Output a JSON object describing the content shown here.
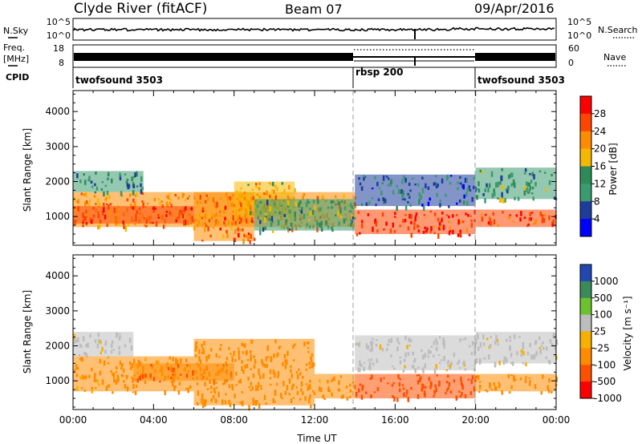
{
  "header": {
    "station": "Clyde River (fitACF)",
    "beam": "Beam 07",
    "date": "09/Apr/2016"
  },
  "panels": {
    "nsky": {
      "label": "N.Sky",
      "left_ticks": [
        "10^5",
        "10^0"
      ],
      "right_ticks": [
        "10^5",
        "10^0"
      ],
      "right_label": "N.Search"
    },
    "freq": {
      "label_line1": "Freq.",
      "label_line2": "[MHz]",
      "left_ticks": [
        "18",
        "8"
      ],
      "right_ticks": [
        "60",
        "0"
      ],
      "right_label": "Nave"
    },
    "cpid": {
      "label": "CPID",
      "segments": [
        {
          "name": "twofsound 3503",
          "start_h": 0,
          "end_h": 14
        },
        {
          "name": "rbsp 200",
          "start_h": 14,
          "end_h": 20
        },
        {
          "name": "twofsound 3503",
          "start_h": 20,
          "end_h": 24
        }
      ]
    }
  },
  "power_colorbar": {
    "label": "Power [dB]",
    "ticks": [
      "28",
      "24",
      "20",
      "16",
      "12",
      "8",
      "4"
    ],
    "colors": [
      "#ff0000",
      "#ff4500",
      "#ff8c00",
      "#f5b800",
      "#2e8b57",
      "#3c9a70",
      "#1c3d9a",
      "#0000ff"
    ]
  },
  "velocity_colorbar": {
    "label": "Velocity [m s⁻¹]",
    "ticks": [
      "1000",
      "500",
      "100",
      "25",
      "-25",
      "-100",
      "-500",
      "-1000"
    ],
    "colors": [
      "#2347b0",
      "#3a8a5a",
      "#6cc22e",
      "#bdbdbd",
      "#f5b000",
      "#ff8c00",
      "#ff5000",
      "#ff0000"
    ]
  },
  "axes": {
    "ylabel": "Slant Range [km]",
    "xlabel": "Time UT"
  },
  "chart_data": [
    {
      "type": "heatmap",
      "title": "",
      "quantity": "Power [dB]",
      "x_unit": "hours UT",
      "x_range": [
        0,
        24
      ],
      "x_ticks": [
        "00:00",
        "04:00",
        "08:00",
        "12:00",
        "16:00",
        "20:00",
        "00:00"
      ],
      "ylabel": "Slant Range [km]",
      "y_range": [
        180,
        4600
      ],
      "y_ticks": [
        1000,
        2000,
        3000,
        4000
      ],
      "color_range": [
        0,
        32
      ],
      "mode_boundaries_h": [
        14,
        20
      ],
      "regions": [
        {
          "x": [
            0,
            14
          ],
          "y": [
            700,
            1700
          ],
          "value": 22
        },
        {
          "x": [
            0,
            3.5
          ],
          "y": [
            1700,
            2300
          ],
          "value": 10
        },
        {
          "x": [
            0,
            6
          ],
          "y": [
            800,
            1300
          ],
          "value": 26
        },
        {
          "x": [
            6,
            9
          ],
          "y": [
            300,
            1700
          ],
          "value": 24
        },
        {
          "x": [
            8,
            11
          ],
          "y": [
            1000,
            2000
          ],
          "value": 20
        },
        {
          "x": [
            9,
            14
          ],
          "y": [
            600,
            1500
          ],
          "value": 12
        },
        {
          "x": [
            14,
            20
          ],
          "y": [
            500,
            1200
          ],
          "value": 28
        },
        {
          "x": [
            14,
            20
          ],
          "y": [
            1300,
            2200
          ],
          "value": 8
        },
        {
          "x": [
            20,
            24
          ],
          "y": [
            700,
            1200
          ],
          "value": 26
        },
        {
          "x": [
            20,
            24
          ],
          "y": [
            1500,
            2400
          ],
          "value": 12
        }
      ]
    },
    {
      "type": "heatmap",
      "title": "",
      "quantity": "Velocity [m s⁻¹]",
      "x_unit": "hours UT",
      "x_range": [
        0,
        24
      ],
      "x_ticks": [
        "00:00",
        "04:00",
        "08:00",
        "12:00",
        "16:00",
        "20:00",
        "00:00"
      ],
      "ylabel": "Slant Range [km]",
      "y_range": [
        180,
        4600
      ],
      "y_ticks": [
        1000,
        2000,
        3000,
        4000
      ],
      "color_range": [
        -1000,
        1000
      ],
      "mode_boundaries_h": [
        14,
        20
      ],
      "regions": [
        {
          "x": [
            0,
            3
          ],
          "y": [
            1700,
            2400
          ],
          "value": 0
        },
        {
          "x": [
            0,
            6
          ],
          "y": [
            700,
            1700
          ],
          "value": -150
        },
        {
          "x": [
            3,
            8
          ],
          "y": [
            1000,
            1500
          ],
          "value": -300
        },
        {
          "x": [
            6,
            12
          ],
          "y": [
            300,
            2200
          ],
          "value": -200
        },
        {
          "x": [
            12,
            14
          ],
          "y": [
            500,
            1200
          ],
          "value": -150
        },
        {
          "x": [
            14,
            20
          ],
          "y": [
            1300,
            2300
          ],
          "value": 0
        },
        {
          "x": [
            14,
            20
          ],
          "y": [
            500,
            1200
          ],
          "value": -500
        },
        {
          "x": [
            20,
            24
          ],
          "y": [
            1500,
            2400
          ],
          "value": 0
        },
        {
          "x": [
            20,
            24
          ],
          "y": [
            700,
            1200
          ],
          "value": -200
        }
      ]
    }
  ]
}
